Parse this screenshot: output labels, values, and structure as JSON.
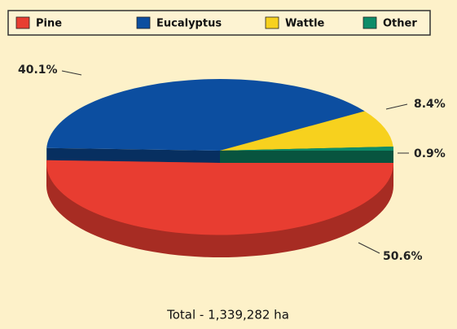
{
  "chart_data": {
    "type": "pie",
    "categories": [
      "Pine",
      "Eucalyptus",
      "Wattle",
      "Other"
    ],
    "values": [
      50.6,
      40.1,
      8.4,
      0.9
    ],
    "value_labels": [
      "50.6%",
      "40.1%",
      "8.4%",
      "0.9%"
    ],
    "colors": [
      "#e83d31",
      "#0c4ea0",
      "#f7d11e",
      "#0d8c69"
    ],
    "legend": "top",
    "annotation": "Total - 1,339,282 ha"
  }
}
